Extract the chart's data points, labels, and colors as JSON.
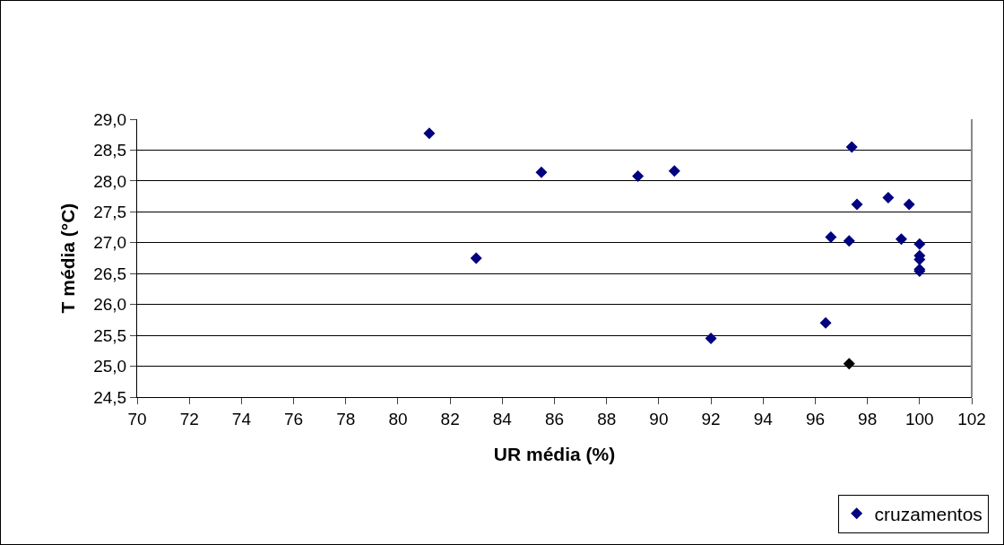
{
  "chart_data": {
    "type": "scatter",
    "xlabel": "UR média (%)",
    "ylabel": "T média (°C)",
    "x": [
      81.2,
      83.0,
      85.5,
      89.2,
      90.6,
      92.0,
      96.4,
      96.6,
      97.3,
      97.3,
      97.4,
      97.6,
      98.8,
      99.3,
      99.6,
      100,
      100,
      100,
      100,
      100
    ],
    "series": [
      {
        "name": "cruzamentos",
        "colors": [
          "#000080",
          "#000080",
          "#000080",
          "#000080",
          "#000080",
          "#000080",
          "#000080",
          "#000080",
          "#000080",
          "#000000",
          "#000080",
          "#000080",
          "#000080",
          "#000080",
          "#000080",
          "#000080",
          "#000080",
          "#000080",
          "#000080",
          "#000080"
        ],
        "values": [
          28.77,
          26.75,
          28.14,
          28.08,
          28.16,
          25.45,
          25.7,
          27.09,
          27.03,
          25.04,
          28.55,
          27.62,
          27.73,
          27.06,
          27.62,
          26.98,
          26.79,
          26.73,
          26.57,
          26.54
        ]
      }
    ],
    "xlim": [
      70,
      102
    ],
    "xticks": [
      70,
      72,
      74,
      76,
      78,
      80,
      82,
      84,
      86,
      88,
      90,
      92,
      94,
      96,
      98,
      100,
      102
    ],
    "ylim": [
      24.5,
      29.0
    ],
    "yticks": [
      {
        "value": 24.5,
        "label": "24,5"
      },
      {
        "value": 25,
        "label": "25,0"
      },
      {
        "value": 25.5,
        "label": "25,5"
      },
      {
        "value": 26,
        "label": "26,0"
      },
      {
        "value": 26.5,
        "label": "26,5"
      },
      {
        "value": 27,
        "label": "27,0"
      },
      {
        "value": 27.5,
        "label": "27,5"
      },
      {
        "value": 28,
        "label": "28,0"
      },
      {
        "value": 28.5,
        "label": "28,5"
      },
      {
        "value": 29,
        "label": "29,0"
      }
    ],
    "grid": "y",
    "legend": "bottom right",
    "marker": "diamond"
  }
}
